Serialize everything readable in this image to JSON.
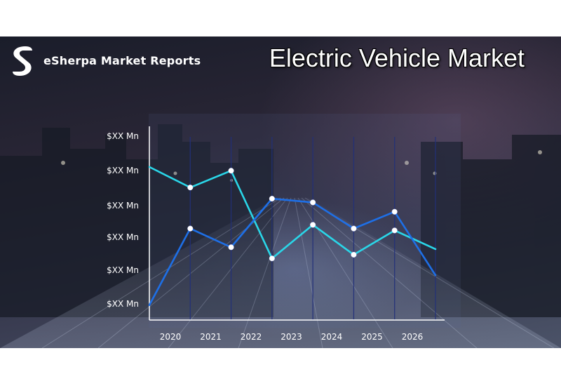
{
  "header": {
    "logo_text": "eSherpa Market Reports",
    "title": "Electric Vehicle Market"
  },
  "colors": {
    "cyan_series": "#2ad6e8",
    "blue_series": "#1e6fe6",
    "axis": "#ffffff",
    "marker": "#ffffff"
  },
  "icons": {
    "logo": "esherpa-logo-icon"
  },
  "chart_data": {
    "type": "line",
    "title": "",
    "xlabel": "",
    "ylabel": "",
    "categories": [
      "2020",
      "2021",
      "2022",
      "2023",
      "2024",
      "2025",
      "2026"
    ],
    "y_tick_labels": [
      "$XX Mn",
      "$XX Mn",
      "$XX Mn",
      "$XX Mn",
      "$XX Mn",
      "$XX Mn"
    ],
    "ylim": [
      0,
      100
    ],
    "grid": "vertical lines only",
    "legend": "none",
    "series": [
      {
        "color": "#2ad6e8",
        "x": [
          2019.5,
          2020.5,
          2021.5,
          2022.5,
          2023.5,
          2024.5,
          2025.5,
          2026.5
        ],
        "values": [
          82,
          71,
          80,
          33,
          51,
          35,
          48,
          38
        ]
      },
      {
        "color": "#1e6fe6",
        "x": [
          2019.5,
          2020.5,
          2021.5,
          2022.5,
          2023.5,
          2024.5,
          2025.5,
          2026.5
        ],
        "values": [
          8,
          49,
          39,
          65,
          63,
          49,
          58,
          24
        ]
      }
    ]
  }
}
